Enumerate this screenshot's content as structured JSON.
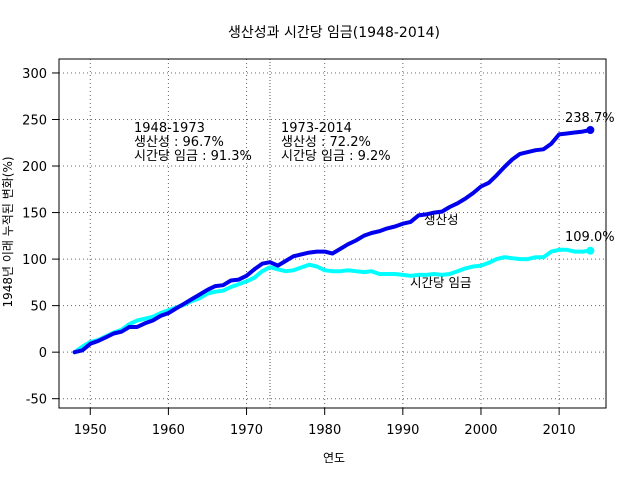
{
  "chart_data": {
    "type": "line",
    "title": "생산성과 시간당 임금(1948-2014)",
    "xlabel": "연도",
    "ylabel": "1948년 이래 누적된 변화(%)",
    "xlim": [
      1946,
      2016
    ],
    "ylim": [
      -60,
      315
    ],
    "x_ticks": [
      1950,
      1960,
      1970,
      1980,
      1990,
      2000,
      2010
    ],
    "y_ticks": [
      -50,
      0,
      50,
      100,
      150,
      200,
      250,
      300
    ],
    "grid": true,
    "reference_line_x": 1973,
    "series": [
      {
        "name": "생산성",
        "color": "#0000ee",
        "line_width": 4,
        "x": [
          1948,
          1949,
          1950,
          1951,
          1952,
          1953,
          1954,
          1955,
          1956,
          1957,
          1958,
          1959,
          1960,
          1961,
          1962,
          1963,
          1964,
          1965,
          1966,
          1967,
          1968,
          1969,
          1970,
          1971,
          1972,
          1973,
          1974,
          1975,
          1976,
          1977,
          1978,
          1979,
          1980,
          1981,
          1982,
          1983,
          1984,
          1985,
          1986,
          1987,
          1988,
          1989,
          1990,
          1991,
          1992,
          1993,
          1994,
          1995,
          1996,
          1997,
          1998,
          1999,
          2000,
          2001,
          2002,
          2003,
          2004,
          2005,
          2006,
          2007,
          2008,
          2009,
          2010,
          2011,
          2012,
          2013,
          2014
        ],
        "values": [
          0,
          2,
          9,
          12,
          16,
          20,
          22,
          27,
          27,
          31,
          34,
          39,
          42,
          47,
          52,
          57,
          62,
          67,
          71,
          72,
          77,
          78,
          82,
          89,
          95,
          96.7,
          93,
          98,
          103,
          105,
          107,
          108,
          108,
          106,
          111,
          116,
          120,
          125,
          128,
          130,
          133,
          135,
          138,
          140,
          147,
          148,
          150,
          151,
          156,
          160,
          165,
          171,
          178,
          182,
          190,
          199,
          207,
          213,
          215,
          217,
          218,
          224,
          234,
          235,
          236,
          237,
          238.7
        ]
      },
      {
        "name": "시간당 임금",
        "color": "#00ffff",
        "line_width": 4,
        "x": [
          1948,
          1949,
          1950,
          1951,
          1952,
          1953,
          1954,
          1955,
          1956,
          1957,
          1958,
          1959,
          1960,
          1961,
          1962,
          1963,
          1964,
          1965,
          1966,
          1967,
          1968,
          1969,
          1970,
          1971,
          1972,
          1973,
          1974,
          1975,
          1976,
          1977,
          1978,
          1979,
          1980,
          1981,
          1982,
          1983,
          1984,
          1985,
          1986,
          1987,
          1988,
          1989,
          1990,
          1991,
          1992,
          1993,
          1994,
          1995,
          1996,
          1997,
          1998,
          1999,
          2000,
          2001,
          2002,
          2003,
          2004,
          2005,
          2006,
          2007,
          2008,
          2009,
          2010,
          2011,
          2012,
          2013,
          2014
        ],
        "values": [
          0,
          6,
          11,
          13,
          17,
          21,
          24,
          30,
          34,
          36,
          38,
          42,
          45,
          48,
          51,
          55,
          58,
          63,
          65,
          66,
          70,
          73,
          76,
          80,
          87,
          91.3,
          89,
          87,
          88,
          91,
          94,
          92,
          88,
          87,
          87,
          88,
          87,
          86,
          87,
          84,
          84,
          84,
          83,
          82,
          83,
          83,
          84,
          83,
          84,
          87,
          90,
          92,
          93,
          96,
          100,
          102,
          101,
          100,
          100,
          102,
          102,
          108,
          110,
          110,
          108,
          108,
          109.0
        ]
      }
    ],
    "annotations": [
      {
        "lines": [
          "1948-1973",
          "생산성 : 96.7%",
          "시간당 임금 : 91.3%"
        ]
      },
      {
        "lines": [
          "1973-2014",
          "생산성 : 72.2%",
          "시간당 임금 : 9.2%"
        ]
      }
    ],
    "end_labels": [
      "238.7%",
      "109.0%"
    ]
  }
}
